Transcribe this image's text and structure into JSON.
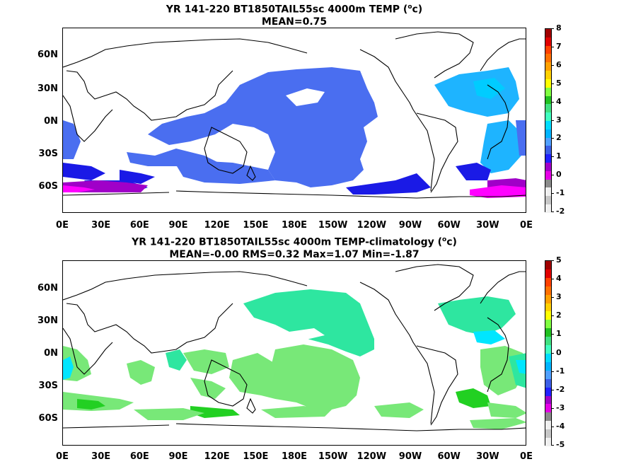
{
  "panels": [
    {
      "title_line1": "YR 141-220 BT1850TAIL55sc 4000m TEMP (",
      "title_sup": "o",
      "title_after": "c)",
      "title_line2": "MEAN=0.75",
      "colorbar_labels": [
        "8",
        "7",
        "6",
        "5",
        "4",
        "3",
        "2",
        "1",
        "0",
        "-1",
        "-2"
      ]
    },
    {
      "title_line1": "YR 141-220 BT1850TAIL55sc 4000m TEMP-climatology (",
      "title_sup": "o",
      "title_after": "c)",
      "title_line2": "MEAN=-0.00   RMS=0.32   Max=1.07   Min=-1.87",
      "colorbar_labels": [
        "5",
        "4",
        "3",
        "2",
        "1",
        "0",
        "-1",
        "-2",
        "-3",
        "-4",
        "-5"
      ]
    }
  ],
  "lat_labels": [
    "60N",
    "30N",
    "0N",
    "30S",
    "60S"
  ],
  "lon_labels": [
    "0E",
    "30E",
    "60E",
    "90E",
    "120E",
    "150E",
    "180E",
    "150W",
    "120W",
    "90W",
    "60W",
    "30W",
    "0E"
  ],
  "colorbar_colors": [
    "#f0f0f0",
    "#c7c7c7",
    "#f0f0f0",
    "#8b8b8b",
    "#e600e6",
    "#a000c8",
    "#2020ff",
    "#3c5fe6",
    "#50a0ff",
    "#00b4ff",
    "#00dcff",
    "#40ffc0",
    "#40e080",
    "#20c020",
    "#80ff40",
    "#ffff00",
    "#ffd000",
    "#ffa000",
    "#ff7000",
    "#ff4000",
    "#e00000",
    "#a00000"
  ],
  "field_colors": {
    "top_blue": "#4a6ef0",
    "top_lightblue": "#1eb4ff",
    "top_cyan": "#00ccff",
    "top_darkblue": "#1a1ae6",
    "top_purple": "#a000c8",
    "top_magenta": "#ff00ff",
    "bot_seagreen": "#2ee6a0",
    "bot_lightgreen": "#78e878",
    "bot_green": "#22d022",
    "bot_cyan": "#00e6ff"
  }
}
